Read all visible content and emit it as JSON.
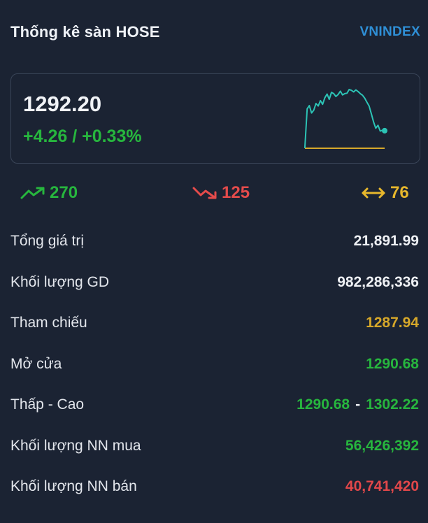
{
  "header": {
    "title": "Thống kê sàn HOSE",
    "index": "VNINDEX"
  },
  "summary": {
    "price": "1292.20",
    "change": "+4.26 / +0.33%"
  },
  "breadth": {
    "advance": "270",
    "decline": "125",
    "unchanged": "76"
  },
  "colors": {
    "up": "#27b63e",
    "down": "#e2474a",
    "reference": "#d7a82a",
    "link": "#2f8fd6",
    "sparkline": "#2cc3b5"
  },
  "sparkline": {
    "reference_level": 1287.94,
    "values": [
      1288.3,
      1297.5,
      1298.3,
      1296.5,
      1297.2,
      1298.8,
      1298.2,
      1299.5,
      1298.6,
      1300.2,
      1301.1,
      1299.8,
      1301.5,
      1301.2,
      1300.5,
      1301.0,
      1301.8,
      1300.9,
      1301.2,
      1301.3,
      1302.2,
      1302.0,
      1301.6,
      1302.1,
      1301.7,
      1301.2,
      1300.8,
      1300.1,
      1299.1,
      1298.2,
      1296.3,
      1294.3,
      1292.8,
      1293.5,
      1292.1,
      1292.3,
      1292.2
    ]
  },
  "stats": {
    "total_value": {
      "label": "Tổng giá trị",
      "value": "21,891.99"
    },
    "volume": {
      "label": "Khối lượng GD",
      "value": "982,286,336"
    },
    "reference": {
      "label": "Tham chiếu",
      "value": "1287.94"
    },
    "open": {
      "label": "Mở cửa",
      "value": "1290.68"
    },
    "low_high": {
      "label": "Thấp - Cao",
      "low": "1290.68",
      "separator": "-",
      "high": "1302.22"
    },
    "foreign_buy": {
      "label": "Khối lượng NN mua",
      "value": "56,426,392"
    },
    "foreign_sell": {
      "label": "Khối lượng NN bán",
      "value": "40,741,420"
    }
  }
}
